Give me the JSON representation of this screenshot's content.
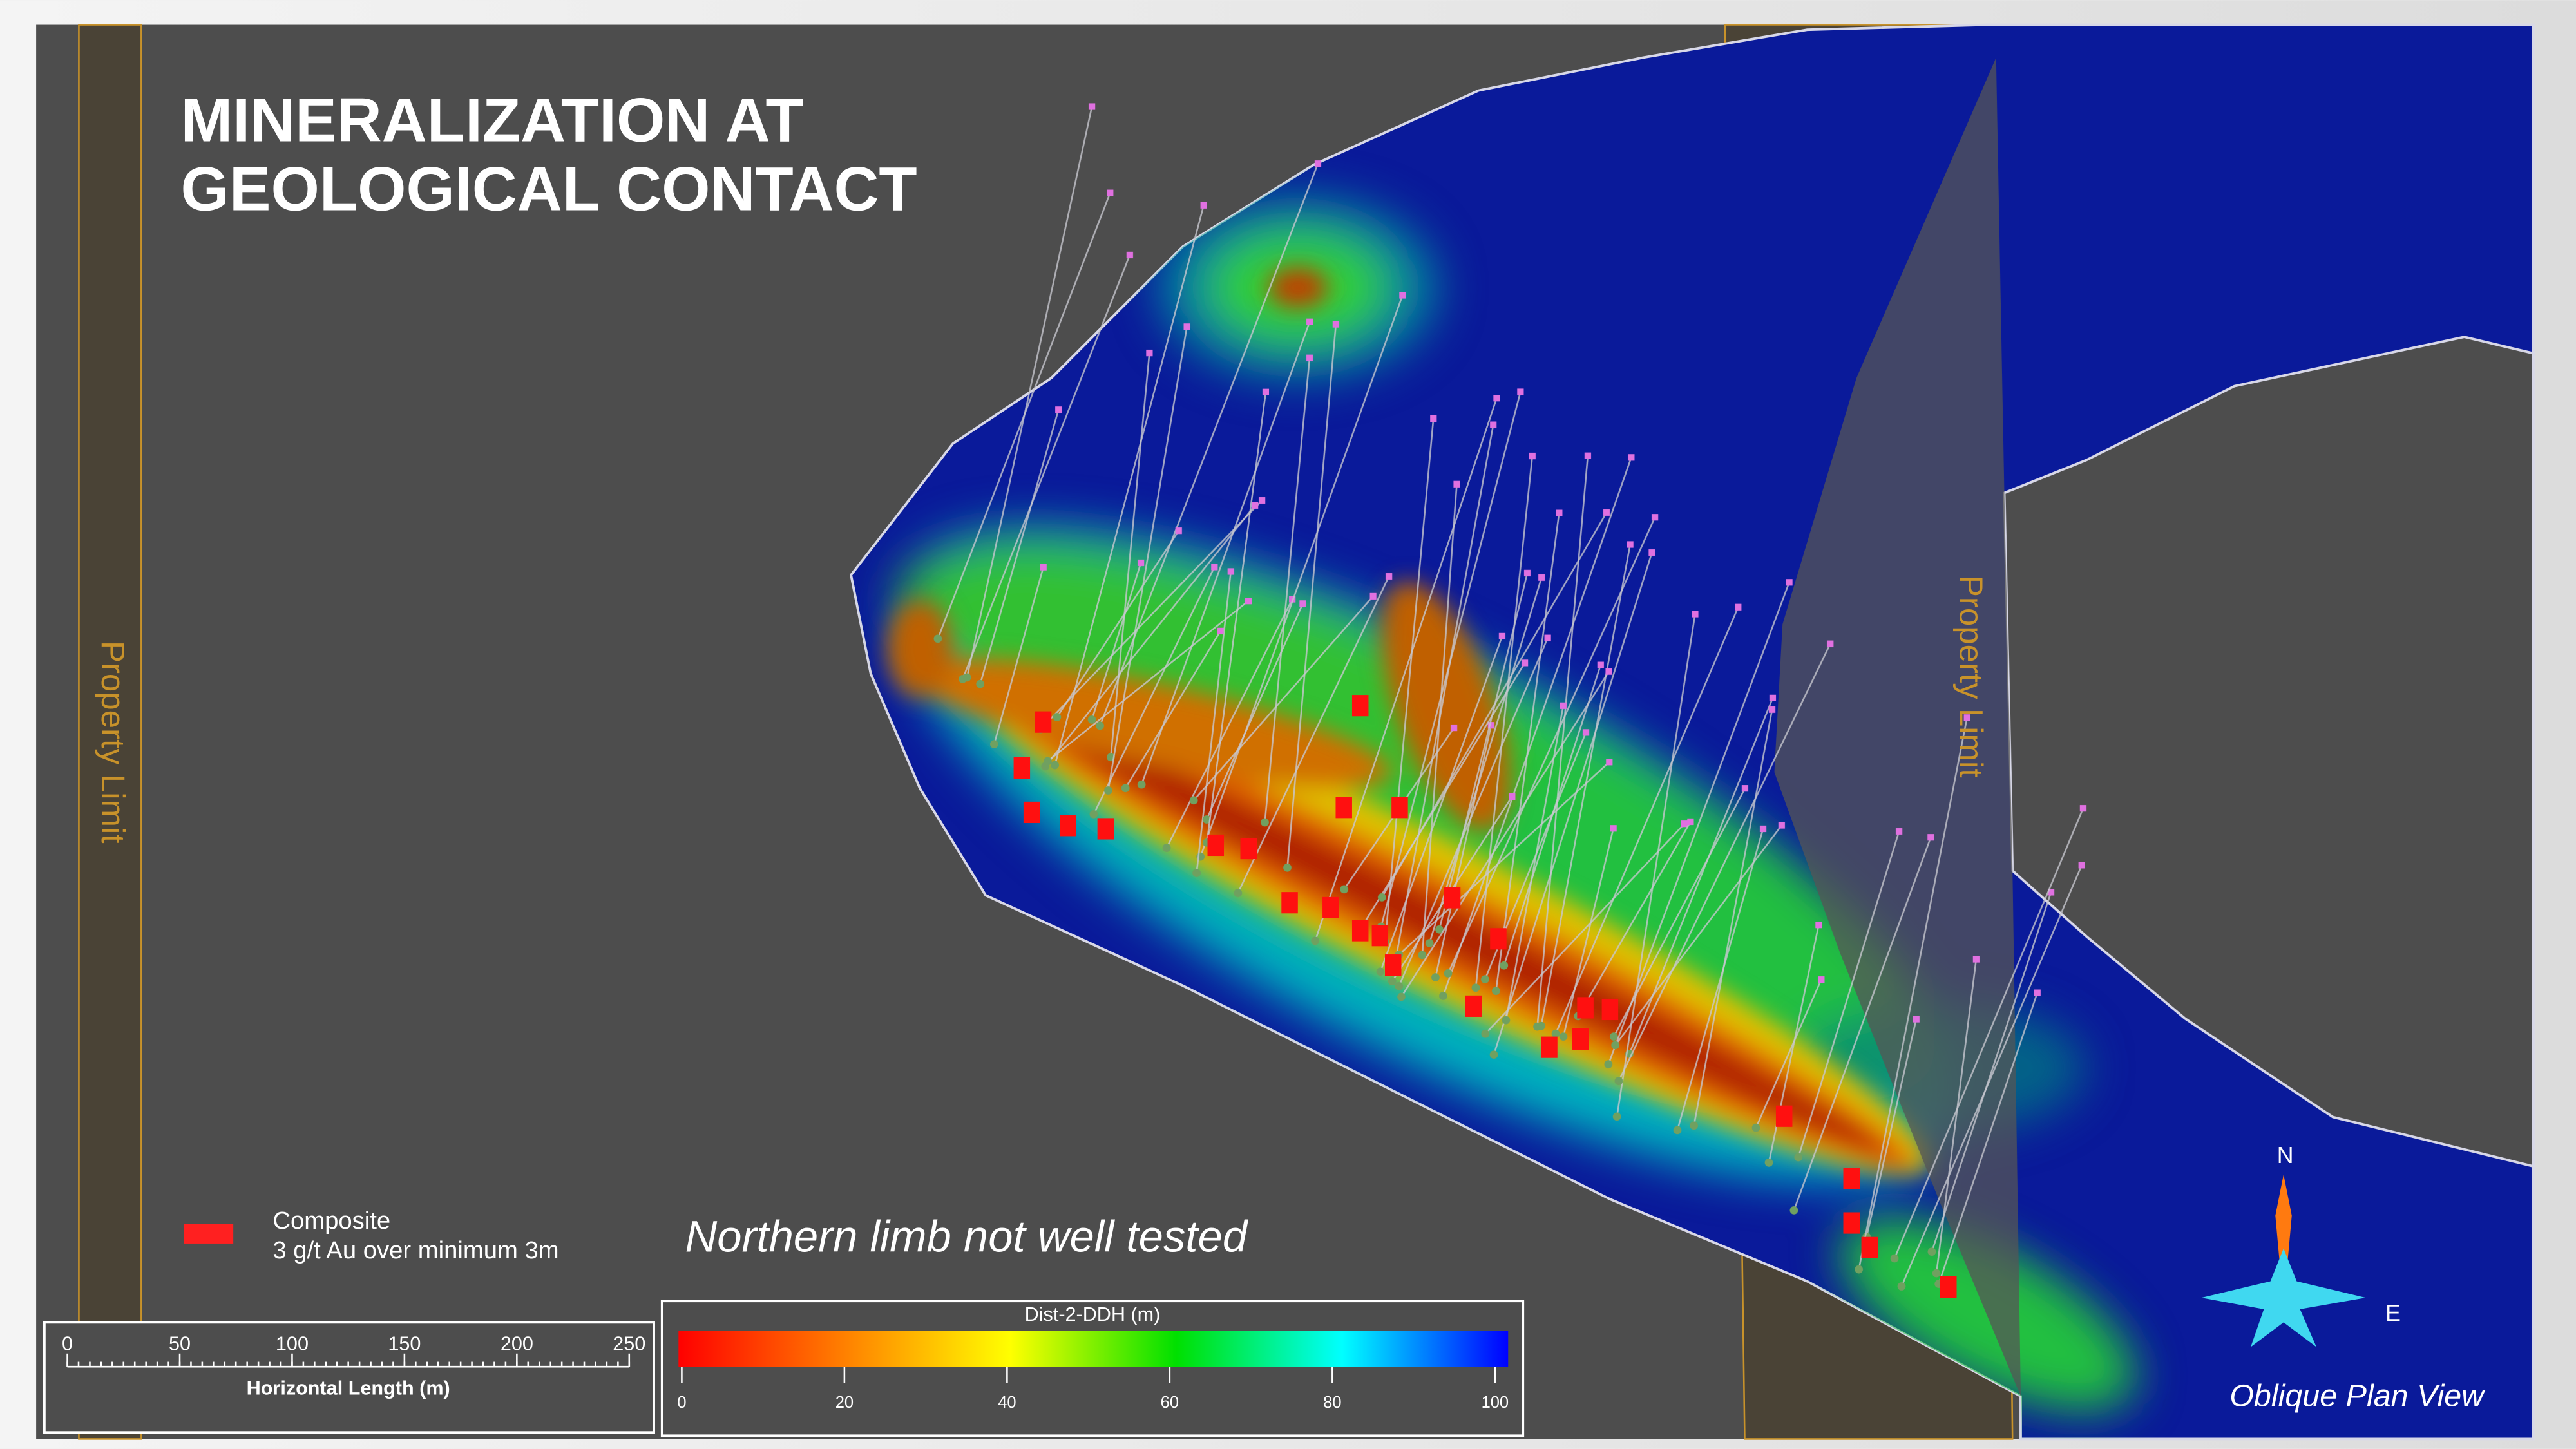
{
  "title": [
    "MINERALIZATION AT",
    "GEOLOGICAL CONTACT"
  ],
  "property_limit_labels": [
    "Property Limit",
    "Property Limit"
  ],
  "legend": {
    "symbol_label": "Composite",
    "description": "3 g/t Au over minimum 3m"
  },
  "annotation": "Northern limb not well tested",
  "scale_bar": {
    "label": "Horizontal Length (m)",
    "ticks": [
      0,
      50,
      100,
      150,
      200,
      250
    ]
  },
  "color_bar": {
    "title": "Dist-2-DDH (m)",
    "ticks": [
      0,
      20,
      40,
      60,
      80,
      100
    ],
    "colors": [
      "#ff0000",
      "#ff8000",
      "#ffff00",
      "#00e000",
      "#00ffff",
      "#0000ff"
    ]
  },
  "compass": {
    "north": "N",
    "east": "E"
  },
  "view_label": "Oblique Plan View"
}
